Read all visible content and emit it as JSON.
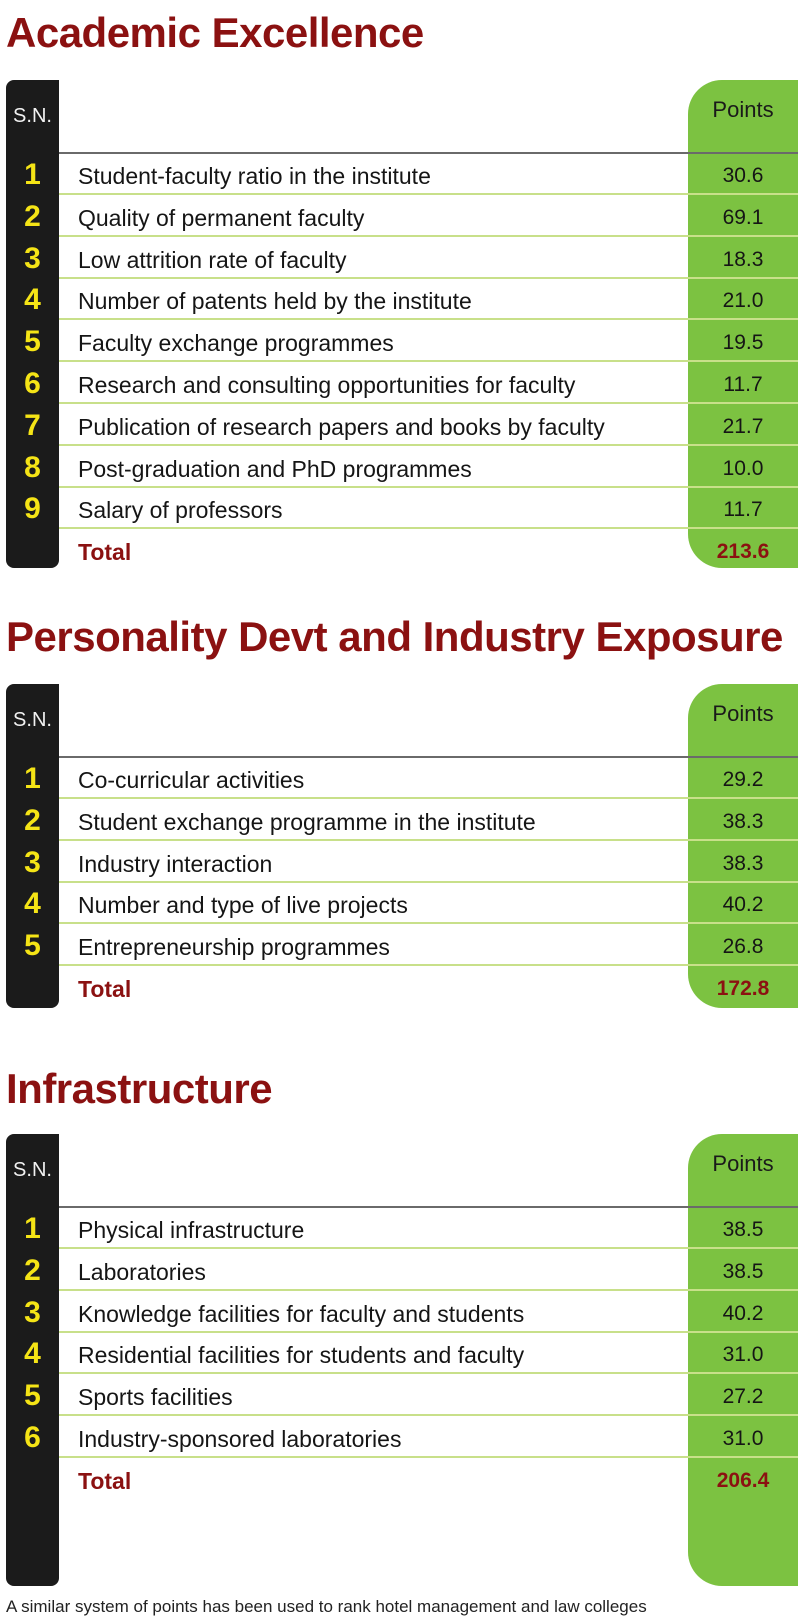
{
  "column_headers": {
    "sn": "S.N.",
    "points": "Points"
  },
  "sections": [
    {
      "title": "Academic Excellence",
      "rows": [
        {
          "n": "1",
          "label": "Student-faculty ratio in the institute",
          "points": "30.6"
        },
        {
          "n": "2",
          "label": "Quality of permanent faculty",
          "points": "69.1"
        },
        {
          "n": "3",
          "label": "Low attrition rate of faculty",
          "points": "18.3"
        },
        {
          "n": "4",
          "label": "Number of patents held by the institute",
          "points": "21.0"
        },
        {
          "n": "5",
          "label": "Faculty exchange programmes",
          "points": "19.5"
        },
        {
          "n": "6",
          "label": "Research and consulting opportunities for faculty",
          "points": "11.7"
        },
        {
          "n": "7",
          "label": "Publication of research papers and books by faculty",
          "points": "21.7"
        },
        {
          "n": "8",
          "label": "Post-graduation and PhD programmes",
          "points": "10.0"
        },
        {
          "n": "9",
          "label": "Salary of professors",
          "points": "11.7"
        }
      ],
      "total": {
        "label": "Total",
        "points": "213.6"
      }
    },
    {
      "title": "Personality Devt and Industry Exposure",
      "rows": [
        {
          "n": "1",
          "label": "Co-curricular activities",
          "points": "29.2"
        },
        {
          "n": "2",
          "label": "Student exchange programme in the institute",
          "points": "38.3"
        },
        {
          "n": "3",
          "label": "Industry interaction",
          "points": "38.3"
        },
        {
          "n": "4",
          "label": "Number and type of live projects",
          "points": "40.2"
        },
        {
          "n": "5",
          "label": "Entrepreneurship programmes",
          "points": "26.8"
        }
      ],
      "total": {
        "label": "Total",
        "points": "172.8"
      }
    },
    {
      "title": "Infrastructure",
      "rows": [
        {
          "n": "1",
          "label": "Physical infrastructure",
          "points": "38.5"
        },
        {
          "n": "2",
          "label": "Laboratories",
          "points": "38.5"
        },
        {
          "n": "3",
          "label": "Knowledge facilities for faculty and students",
          "points": "40.2"
        },
        {
          "n": "4",
          "label": "Residential facilities for students and faculty",
          "points": "31.0"
        },
        {
          "n": "5",
          "label": "Sports facilities",
          "points": "27.2"
        },
        {
          "n": "6",
          "label": "Industry-sponsored laboratories",
          "points": "31.0"
        }
      ],
      "total": {
        "label": "Total",
        "points": "206.4"
      }
    }
  ],
  "footnote": "A similar system of points has been used to rank hotel management and law colleges",
  "colors": {
    "title": "#8b1111",
    "sn_column": "#1b1b1b",
    "sn_digits": "#f5e416",
    "points_column": "#7cc241",
    "row_rule": "#c8e08a"
  }
}
